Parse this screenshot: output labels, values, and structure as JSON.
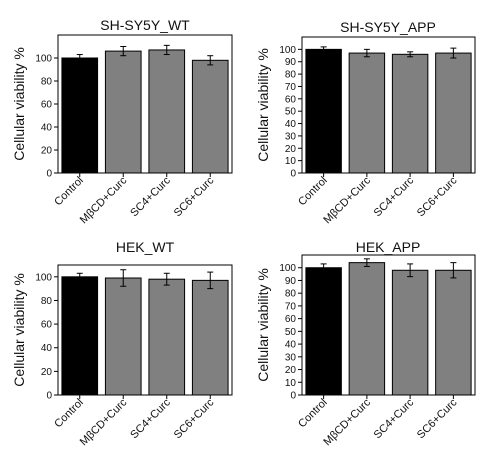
{
  "chart_data": [
    {
      "type": "bar",
      "title": "SH-SY5Y_WT",
      "ylabel": "Cellular viability %",
      "xlabel": "",
      "categories": [
        "Control",
        "MβCD+Curc",
        "SC4+Curc",
        "SC6+Curc"
      ],
      "values": [
        100,
        106,
        107,
        98
      ],
      "errors": [
        3,
        4,
        4,
        4
      ],
      "ylim": [
        0,
        120
      ],
      "yticks": [
        0,
        20,
        40,
        60,
        80,
        100
      ],
      "colors": [
        "#000000",
        "#808080",
        "#808080",
        "#808080"
      ]
    },
    {
      "type": "bar",
      "title": "SH-SY5Y_APP",
      "ylabel": "Cellular viability %",
      "xlabel": "",
      "categories": [
        "Control",
        "MβCD+Curc",
        "SC4+Curc",
        "SC6+Curc"
      ],
      "values": [
        100,
        97,
        96,
        97
      ],
      "errors": [
        2,
        3,
        2,
        4
      ],
      "ylim": [
        0,
        110
      ],
      "yticks": [
        0,
        10,
        20,
        30,
        40,
        50,
        60,
        70,
        80,
        90,
        100
      ],
      "colors": [
        "#000000",
        "#808080",
        "#808080",
        "#808080"
      ]
    },
    {
      "type": "bar",
      "title": "HEK_WT",
      "ylabel": "Cellular viability %",
      "xlabel": "",
      "categories": [
        "Control",
        "MβCD+Curc",
        "SC4+Curc",
        "SC6+Curc"
      ],
      "values": [
        100,
        99,
        98,
        97
      ],
      "errors": [
        3,
        7,
        5,
        7
      ],
      "ylim": [
        0,
        110
      ],
      "yticks": [
        0,
        20,
        40,
        60,
        80,
        100
      ],
      "colors": [
        "#000000",
        "#808080",
        "#808080",
        "#808080"
      ]
    },
    {
      "type": "bar",
      "title": "HEK_APP",
      "ylabel": "Cellular viability %",
      "xlabel": "",
      "categories": [
        "Control",
        "MβCD+Curc",
        "SC4+Curc",
        "SC6+Curc"
      ],
      "values": [
        100,
        104,
        98,
        98
      ],
      "errors": [
        3,
        3,
        5,
        6
      ],
      "ylim": [
        0,
        110
      ],
      "yticks": [
        0,
        10,
        20,
        30,
        40,
        50,
        60,
        70,
        80,
        90,
        100
      ],
      "colors": [
        "#000000",
        "#808080",
        "#808080",
        "#808080"
      ]
    }
  ]
}
